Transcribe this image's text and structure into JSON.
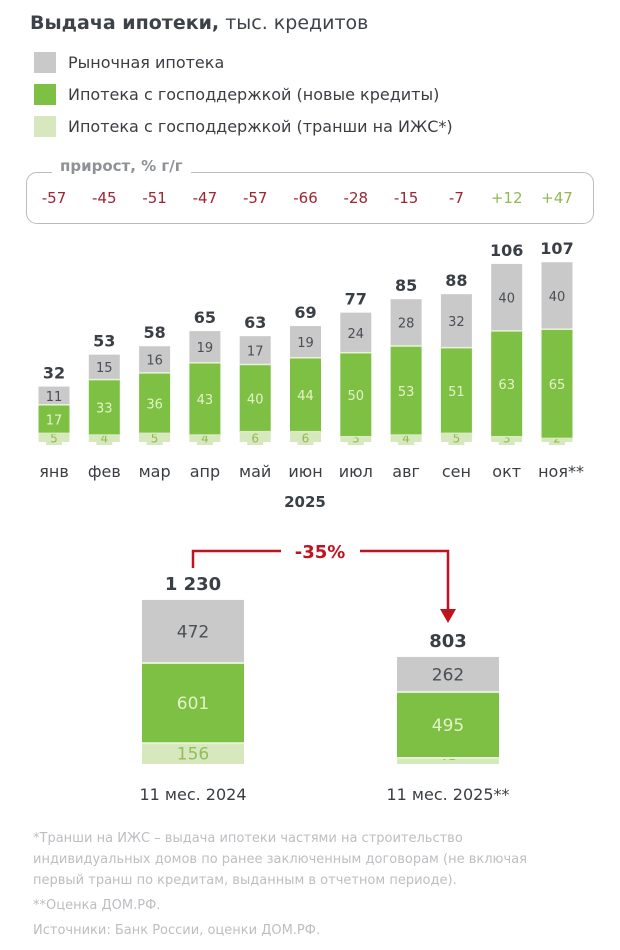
{
  "title": {
    "bold": "Выдача ипотеки,",
    "unit": "тыс. кредитов"
  },
  "legend": [
    {
      "label": "Рыночная ипотека",
      "color": "#c9c9c9"
    },
    {
      "label": "Ипотека с господдержкой (новые кредиты)",
      "color": "#7dc043"
    },
    {
      "label": "Ипотека с господдержкой (транши на ИЖС*)",
      "color": "#d7e8be"
    }
  ],
  "colors": {
    "market": "#c9c9c9",
    "state_new": "#7dc043",
    "state_tranches": "#d7e8be",
    "negative": "#a02432",
    "positive": "#8fba4e",
    "arrow": "#c2111f",
    "total_text": "#3a3f46"
  },
  "growth": {
    "title": "прирост, % г/г",
    "values": [
      "-57",
      "-45",
      "-51",
      "-47",
      "-57",
      "-66",
      "-28",
      "-15",
      "-7",
      "+12",
      "+47"
    ]
  },
  "chart_data": [
    {
      "type": "bar",
      "stacked": true,
      "title": "Выдача ипотеки, тыс. кредитов",
      "xlabel": "2025",
      "ylabel": "",
      "categories": [
        "янв",
        "фев",
        "мар",
        "апр",
        "май",
        "июн",
        "июл",
        "авг",
        "сен",
        "окт",
        "ноя**"
      ],
      "series": [
        {
          "name": "Ипотека с господдержкой (транши на ИЖС*)",
          "values": [
            5,
            4,
            5,
            4,
            6,
            6,
            3,
            4,
            5,
            3,
            2
          ]
        },
        {
          "name": "Ипотека с господдержкой (новые кредиты)",
          "values": [
            17,
            33,
            36,
            43,
            40,
            44,
            50,
            53,
            51,
            63,
            65
          ]
        },
        {
          "name": "Рыночная ипотека",
          "values": [
            11,
            15,
            16,
            19,
            17,
            19,
            24,
            28,
            32,
            40,
            40
          ]
        }
      ],
      "totals": [
        32,
        53,
        58,
        65,
        63,
        69,
        77,
        85,
        88,
        106,
        107
      ],
      "ylim": [
        0,
        107
      ],
      "grid": false,
      "legend": "top-left"
    },
    {
      "type": "bar",
      "stacked": true,
      "categories": [
        "11 мес. 2024",
        "11 мес. 2025**"
      ],
      "series": [
        {
          "name": "Ипотека с господдержкой (транши на ИЖС*)",
          "values": [
            156,
            45
          ]
        },
        {
          "name": "Ипотека с господдержкой (новые кредиты)",
          "values": [
            601,
            495
          ]
        },
        {
          "name": "Рыночная ипотека",
          "values": [
            472,
            262
          ]
        }
      ],
      "totals": [
        "1 230",
        "803"
      ],
      "change_label": "-35%",
      "grid": false
    }
  ],
  "footnotes": [
    "*Транши на ИЖС – выдача ипотеки частями на строительство",
    "индивидуальных домов по ранее заключенным договорам (не включая",
    "первый транш по кредитам, выданным в отчетном периоде).",
    "**Оценка ДОМ.РФ.",
    "Источники: Банк России, оценки ДОМ.РФ."
  ]
}
